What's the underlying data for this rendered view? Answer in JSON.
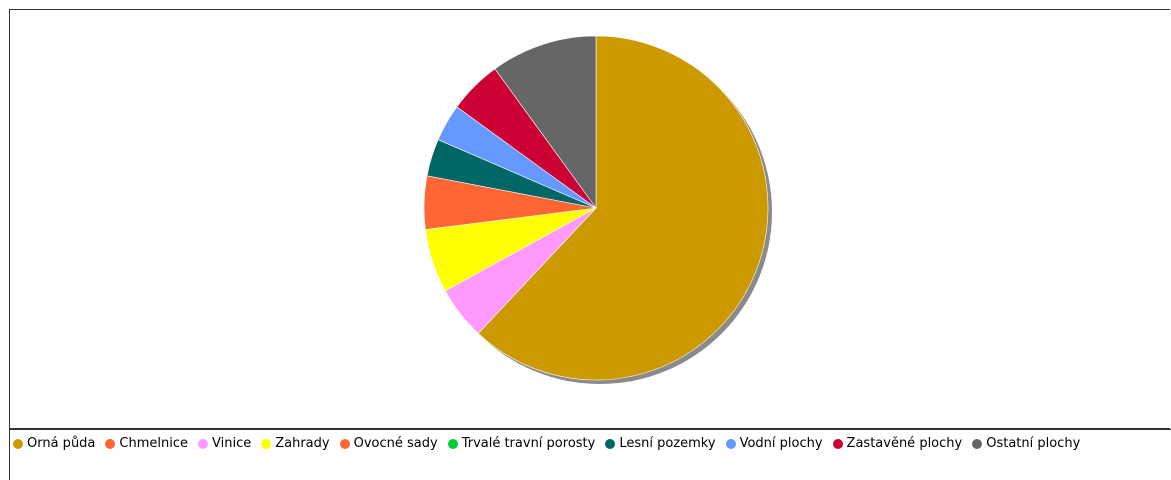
{
  "chart_data": {
    "type": "pie",
    "legend_position": "bottom",
    "slices": [
      {
        "label": "Orná půda",
        "value": 62.0,
        "color": "#cc9900"
      },
      {
        "label": "Chmelnice",
        "value": 0.0,
        "color": "#ff6633"
      },
      {
        "label": "Vinice",
        "value": 5.0,
        "color": "#ff99ff"
      },
      {
        "label": "Zahrady",
        "value": 6.0,
        "color": "#ffff00"
      },
      {
        "label": "Ovocné sady",
        "value": 5.0,
        "color": "#ff6633"
      },
      {
        "label": "Trvalé travní porosty",
        "value": 0.0,
        "color": "#00cc33"
      },
      {
        "label": "Lesní pozemky",
        "value": 3.5,
        "color": "#006666"
      },
      {
        "label": "Vodní plochy",
        "value": 3.5,
        "color": "#6699ff"
      },
      {
        "label": "Zastavěné plochy",
        "value": 5.0,
        "color": "#cc0033"
      },
      {
        "label": "Ostatní plochy",
        "value": 10.0,
        "color": "#666666"
      }
    ]
  }
}
